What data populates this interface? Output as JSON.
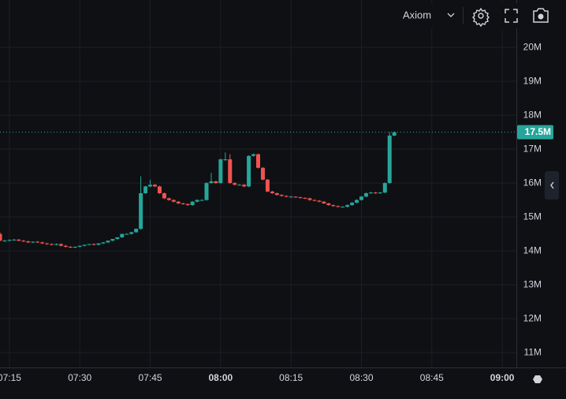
{
  "chart_data": {
    "type": "candlestick",
    "toolbar_label": "Axiom",
    "x": [
      "07:13",
      "07:14",
      "07:15",
      "07:16",
      "07:17",
      "07:18",
      "07:19",
      "07:20",
      "07:21",
      "07:22",
      "07:23",
      "07:24",
      "07:25",
      "07:26",
      "07:27",
      "07:28",
      "07:29",
      "07:30",
      "07:31",
      "07:32",
      "07:33",
      "07:34",
      "07:35",
      "07:36",
      "07:37",
      "07:38",
      "07:39",
      "07:40",
      "07:41",
      "07:42",
      "07:43",
      "07:44",
      "07:45",
      "07:46",
      "07:47",
      "07:48",
      "07:49",
      "07:50",
      "07:51",
      "07:52",
      "07:53",
      "07:54",
      "07:55",
      "07:56",
      "07:57",
      "07:58",
      "07:59",
      "08:00",
      "08:01",
      "08:02",
      "08:03",
      "08:04",
      "08:05",
      "08:06",
      "08:07",
      "08:08",
      "08:09",
      "08:10",
      "08:11",
      "08:12",
      "08:13",
      "08:14",
      "08:15",
      "08:16",
      "08:17",
      "08:18",
      "08:19",
      "08:20",
      "08:21",
      "08:22",
      "08:23",
      "08:24",
      "08:25",
      "08:26",
      "08:27",
      "08:28",
      "08:29",
      "08:30",
      "08:31",
      "08:32",
      "08:33",
      "08:34",
      "08:35",
      "08:36",
      "08:37"
    ],
    "open": [
      14.5,
      14.3,
      14.3,
      14.32,
      14.33,
      14.3,
      14.28,
      14.25,
      14.27,
      14.25,
      14.22,
      14.2,
      14.18,
      14.2,
      14.15,
      14.12,
      14.1,
      14.12,
      14.15,
      14.18,
      14.2,
      14.18,
      14.22,
      14.25,
      14.3,
      14.35,
      14.4,
      14.5,
      14.5,
      14.55,
      14.65,
      15.7,
      15.9,
      15.95,
      15.9,
      15.7,
      15.55,
      15.5,
      15.45,
      15.4,
      15.38,
      15.35,
      15.45,
      15.5,
      15.5,
      16.0,
      16.05,
      16.0,
      16.7,
      16.7,
      16.0,
      15.95,
      15.95,
      15.9,
      16.8,
      16.85,
      16.45,
      16.1,
      15.75,
      15.7,
      15.65,
      15.62,
      15.6,
      15.6,
      15.58,
      15.56,
      15.55,
      15.5,
      15.48,
      15.45,
      15.4,
      15.35,
      15.32,
      15.3,
      15.3,
      15.35,
      15.42,
      15.5,
      15.6,
      15.7,
      15.72,
      15.7,
      15.72,
      16.0,
      17.4
    ],
    "high": [
      14.55,
      14.33,
      14.34,
      14.35,
      14.35,
      14.32,
      14.3,
      14.28,
      14.29,
      14.27,
      14.24,
      14.22,
      14.22,
      14.22,
      14.17,
      14.14,
      14.13,
      14.15,
      14.18,
      14.2,
      14.22,
      14.22,
      14.26,
      14.3,
      14.35,
      14.4,
      14.5,
      14.52,
      14.56,
      14.66,
      16.2,
      15.92,
      16.1,
      15.97,
      15.92,
      15.72,
      15.57,
      15.52,
      15.47,
      15.42,
      15.4,
      15.47,
      15.52,
      15.52,
      16.02,
      16.3,
      16.07,
      16.72,
      16.9,
      16.85,
      16.02,
      15.97,
      15.97,
      16.82,
      16.87,
      16.87,
      16.47,
      16.12,
      15.77,
      15.72,
      15.67,
      15.64,
      15.62,
      15.6,
      15.6,
      15.58,
      15.57,
      15.52,
      15.5,
      15.47,
      15.42,
      15.37,
      15.34,
      15.32,
      15.37,
      15.44,
      15.52,
      15.62,
      15.72,
      15.74,
      15.74,
      15.74,
      16.02,
      17.5,
      17.52
    ],
    "low": [
      14.28,
      14.27,
      14.28,
      14.3,
      14.28,
      14.26,
      14.23,
      14.23,
      14.23,
      14.2,
      14.18,
      14.16,
      14.16,
      14.13,
      14.1,
      14.08,
      14.08,
      14.1,
      14.13,
      14.16,
      14.16,
      14.16,
      14.2,
      14.23,
      14.28,
      14.33,
      14.38,
      14.48,
      14.48,
      14.53,
      14.62,
      15.68,
      15.88,
      15.88,
      15.68,
      15.53,
      15.48,
      15.43,
      15.38,
      15.36,
      15.33,
      15.33,
      15.43,
      15.48,
      15.48,
      15.98,
      15.98,
      15.98,
      16.65,
      15.98,
      15.93,
      15.93,
      15.88,
      15.88,
      16.78,
      16.43,
      16.08,
      15.73,
      15.68,
      15.63,
      15.6,
      15.58,
      15.57,
      15.56,
      15.54,
      15.53,
      15.48,
      15.46,
      15.43,
      15.38,
      15.33,
      15.3,
      15.28,
      15.28,
      15.28,
      15.33,
      15.4,
      15.48,
      15.58,
      15.68,
      15.68,
      15.68,
      15.7,
      15.98,
      17.38
    ],
    "close": [
      14.3,
      14.3,
      14.32,
      14.33,
      14.3,
      14.28,
      14.25,
      14.27,
      14.25,
      14.22,
      14.2,
      14.18,
      14.2,
      14.15,
      14.12,
      14.1,
      14.12,
      14.15,
      14.18,
      14.2,
      14.18,
      14.22,
      14.25,
      14.3,
      14.35,
      14.4,
      14.5,
      14.5,
      14.55,
      14.65,
      15.7,
      15.9,
      15.95,
      15.9,
      15.7,
      15.55,
      15.5,
      15.45,
      15.4,
      15.38,
      15.35,
      15.45,
      15.5,
      15.5,
      16.0,
      16.05,
      16.0,
      16.7,
      16.7,
      16.0,
      15.95,
      15.95,
      15.9,
      16.8,
      16.85,
      16.45,
      16.1,
      15.75,
      15.7,
      15.65,
      15.62,
      15.6,
      15.6,
      15.58,
      15.56,
      15.55,
      15.5,
      15.48,
      15.45,
      15.4,
      15.35,
      15.32,
      15.3,
      15.3,
      15.35,
      15.42,
      15.5,
      15.6,
      15.7,
      15.72,
      15.7,
      15.72,
      16.0,
      17.4,
      17.5
    ],
    "up_color": "#26a69a",
    "down_color": "#ef5350",
    "xlim": [
      "07:13",
      "09:03"
    ],
    "xticks": [
      "07:15",
      "07:30",
      "07:45",
      "08:00",
      "08:15",
      "08:30",
      "08:45",
      "09:00"
    ],
    "xticks_bold": [
      false,
      false,
      false,
      true,
      false,
      false,
      false,
      true
    ],
    "ylim": [
      10.56,
      21.4
    ],
    "yticks": [
      {
        "value": 11,
        "label": "11M"
      },
      {
        "value": 12,
        "label": "12M"
      },
      {
        "value": 13,
        "label": "13M"
      },
      {
        "value": 14,
        "label": "14M"
      },
      {
        "value": 15,
        "label": "15M"
      },
      {
        "value": 16,
        "label": "16M"
      },
      {
        "value": 17,
        "label": "17M"
      },
      {
        "value": 18,
        "label": "18M"
      },
      {
        "value": 19,
        "label": "19M"
      },
      {
        "value": 20,
        "label": "20M"
      }
    ],
    "last_price": {
      "value": 17.5,
      "label": "17.5M"
    },
    "grid": true
  }
}
